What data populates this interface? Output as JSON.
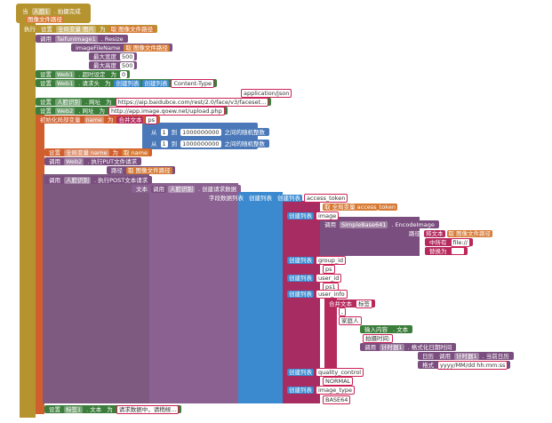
{
  "rows": [
    [
      "当",
      "人脸1",
      ". 拍摄完成"
    ],
    [
      "图像文件路径"
    ],
    [
      "执行",
      "设置",
      "全局变量 图片",
      "为",
      "取 图像文件路径"
    ],
    [
      "调用",
      "TaifunImage1",
      ". Resize"
    ],
    [
      "imageFileName",
      "取 图像文件路径"
    ],
    [
      "最大宽度",
      "500"
    ],
    [
      "最大高度",
      "500"
    ],
    [
      "设置",
      "Web1",
      ". 超时设定",
      "为",
      "0"
    ],
    [
      "设置",
      "Web1",
      ". 请求头",
      "为",
      "创建列表",
      "创建列表",
      "Content-Type"
    ],
    [
      "application/json"
    ],
    [
      "设置",
      "人脸识别",
      ". 网址",
      "为",
      "https://aip.baidubce.com/rest/2.0/face/v3/faceset..."
    ],
    [
      "设置",
      "Web2",
      ". 网址",
      "为",
      "http://app.image.qoew.net/upload.php"
    ],
    [
      "初始化局部变量",
      "name",
      "为",
      "合并文本",
      "ps"
    ],
    [
      "从",
      "1",
      "到",
      "1000000000",
      "之间的随机整数"
    ],
    [
      "从",
      "1",
      "到",
      "1000000000",
      "之间的随机整数"
    ],
    [
      "设置",
      "全局变量 name",
      "为",
      "取 name"
    ],
    [
      "调用",
      "Web2",
      ". 执行PUT文件请求"
    ],
    [
      "路径",
      "取 图像文件路径"
    ],
    [
      "调用",
      "人脸识别",
      ". 执行POST文本请求"
    ],
    [
      "文本",
      "调用",
      "人脸识别",
      ". 创建请求数据"
    ],
    [
      "字段数据列表",
      "创建列表",
      "创建列表",
      "access_token"
    ],
    [
      "取 全局变量 access_token"
    ],
    [
      "创建列表",
      "image"
    ],
    [
      "调用",
      "SimpleBase641",
      ". EncodeImage"
    ],
    [
      "路径",
      "将文本",
      "取 图像文件路径"
    ],
    [
      "中所有",
      "file://"
    ],
    [
      "替换为"
    ],
    [
      "创建列表",
      "group_id"
    ],
    [
      "ps"
    ],
    [
      "创建列表",
      "user_id"
    ],
    [
      "ps1"
    ],
    [
      "创建列表",
      "user_info"
    ],
    [
      "合并文本",
      "标签"
    ],
    [
      ","
    ],
    [
      "家庭人"
    ],
    [
      "输入内容",
      ". 文本"
    ],
    [
      "拍摄时间:"
    ],
    [
      "调用",
      "计时器1",
      ". 格式化日期时间"
    ],
    [
      "日历",
      "调用",
      "计时器1",
      ". 当前日历"
    ],
    [
      "格式",
      "yyyy/MM/dd hh:mm:ss"
    ],
    [
      "创建列表",
      "quality_control"
    ],
    [
      "NORMAL"
    ],
    [
      "创建列表",
      "image_type"
    ],
    [
      "BASE64"
    ],
    [
      "设置",
      "标签1",
      ". 文本",
      "为",
      "请求数据中，请稍候..."
    ]
  ]
}
